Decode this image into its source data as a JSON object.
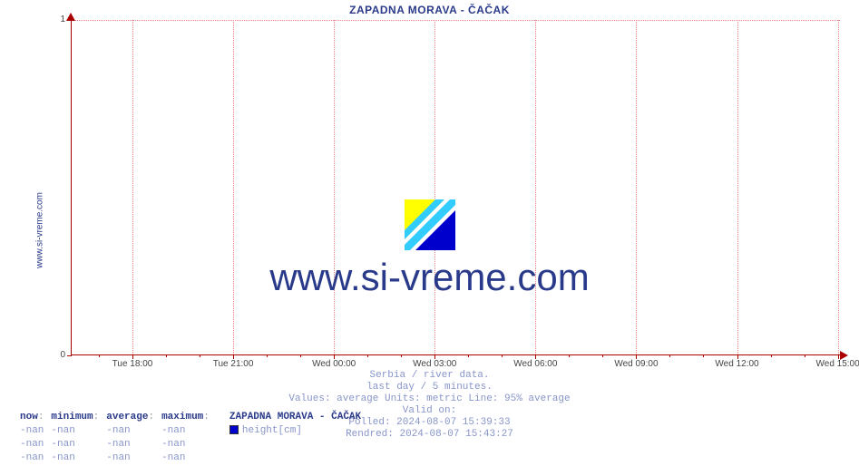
{
  "title": "ZAPADNA MORAVA -  ČAČAK",
  "site_label": "www.si-vreme.com",
  "watermark": "www.si-vreme.com",
  "chart": {
    "type": "line",
    "background_color": "#ffffff",
    "axis_color": "#aa0000",
    "grid_color": "#e08080",
    "grid_style": "dotted",
    "ylim": [
      0,
      1
    ],
    "yticks": [
      {
        "v": 0,
        "label": "0"
      },
      {
        "v": 1,
        "label": "1"
      }
    ],
    "xticks": [
      {
        "pos": 0.079,
        "label": "Tue 18:00"
      },
      {
        "pos": 0.21,
        "label": "Tue 21:00"
      },
      {
        "pos": 0.341,
        "label": "Wed 00:00"
      },
      {
        "pos": 0.472,
        "label": "Wed 03:00"
      },
      {
        "pos": 0.603,
        "label": "Wed 06:00"
      },
      {
        "pos": 0.734,
        "label": "Wed 09:00"
      },
      {
        "pos": 0.865,
        "label": "Wed 12:00"
      },
      {
        "pos": 0.996,
        "label": "Wed 15:00"
      }
    ],
    "xminor_between": 2,
    "series": [],
    "title_color": "#2a3a8a",
    "title_fontsize": 12,
    "tick_fontsize": 10,
    "watermark_fontsize": 42,
    "watermark_color": "#2a3a8a"
  },
  "logo_colors": {
    "tri_yellow": "#ffff00",
    "stripe_cyan": "#33ccff",
    "stripe_white": "#ffffff",
    "tri_blue": "#0000cc"
  },
  "meta": {
    "line1": "Serbia / river data.",
    "line2": "last day / 5 minutes.",
    "line3": "Values: average  Units: metric  Line: 95% average",
    "line4": "Valid on:",
    "line5": "Polled: 2024-08-07 15:39:33",
    "line6": "Rendred: 2024-08-07 15:43:27"
  },
  "legend": {
    "headers": [
      "now",
      "minimum",
      "average",
      "maximum"
    ],
    "series_name": "ZAPADNA MORAVA -  ČAČAK",
    "swatch_color": "#0000cc",
    "metric_label": "height[cm]",
    "rows": [
      [
        "-nan",
        "-nan",
        "-nan",
        "-nan"
      ],
      [
        "-nan",
        "-nan",
        "-nan",
        "-nan"
      ],
      [
        "-nan",
        "-nan",
        "-nan",
        "-nan"
      ]
    ]
  }
}
